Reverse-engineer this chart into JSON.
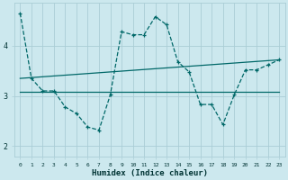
{
  "xlabel": "Humidex (Indice chaleur)",
  "background_color": "#cce8ee",
  "grid_color": "#aacdd6",
  "line_color": "#006868",
  "xlim": [
    -0.5,
    23.5
  ],
  "ylim": [
    1.8,
    4.85
  ],
  "yticks": [
    2,
    3,
    4
  ],
  "xticks": [
    0,
    1,
    2,
    3,
    4,
    5,
    6,
    7,
    8,
    9,
    10,
    11,
    12,
    13,
    14,
    15,
    16,
    17,
    18,
    19,
    20,
    21,
    22,
    23
  ],
  "series1_x": [
    0,
    1,
    2,
    3,
    4,
    5,
    6,
    7,
    8,
    9,
    10,
    11,
    12,
    13,
    14,
    15,
    16,
    17,
    18,
    19,
    20,
    21,
    22,
    23
  ],
  "series1_y": [
    4.65,
    3.35,
    3.1,
    3.1,
    2.78,
    2.65,
    2.38,
    2.32,
    3.02,
    4.28,
    4.22,
    4.22,
    4.58,
    4.42,
    3.68,
    3.48,
    2.83,
    2.83,
    2.43,
    3.02,
    3.52,
    3.52,
    3.62,
    3.72
  ],
  "series2_x": [
    0,
    23
  ],
  "series2_y": [
    3.08,
    3.08
  ],
  "series3_x": [
    0,
    23
  ],
  "series3_y": [
    3.35,
    3.72
  ]
}
